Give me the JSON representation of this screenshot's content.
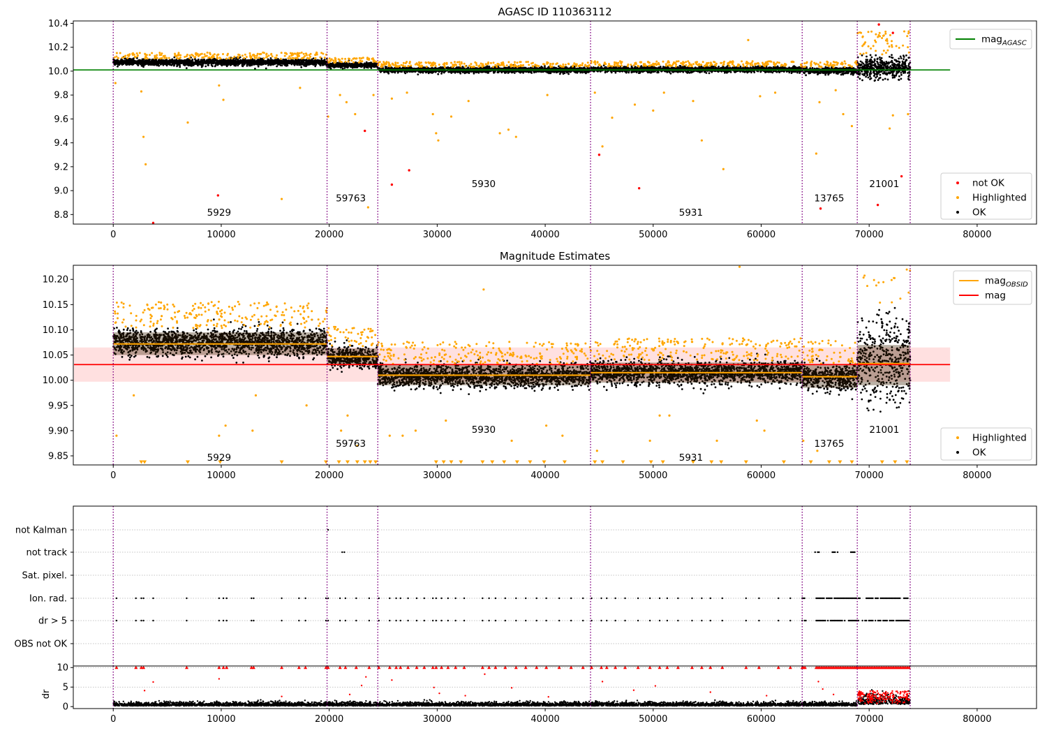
{
  "chart_data": [
    {
      "id": "top",
      "type": "scatter",
      "title": "AGASC ID 110363112",
      "xlabel": "",
      "ylabel": "",
      "xlim": [
        -3700,
        85500
      ],
      "ylim": [
        8.72,
        10.42
      ],
      "xticks": [
        0,
        10000,
        20000,
        30000,
        40000,
        50000,
        60000,
        70000,
        80000
      ],
      "yticks": [
        8.8,
        9.0,
        9.2,
        9.4,
        9.6,
        9.8,
        10.0,
        10.2,
        10.4
      ],
      "ytick_labels": [
        "8.8",
        "9.0",
        "9.2",
        "9.4",
        "9.6",
        "9.8",
        "10.0",
        "10.2",
        "10.4"
      ],
      "observation_boundaries": [
        0,
        19800,
        24500,
        44200,
        63800,
        68900,
        73800
      ],
      "observation_labels": [
        {
          "text": "5929",
          "x": 9800,
          "y": 8.79
        },
        {
          "text": "59763",
          "x": 22000,
          "y": 8.91
        },
        {
          "text": "5930",
          "x": 34300,
          "y": 9.03
        },
        {
          "text": "5931",
          "x": 53500,
          "y": 8.79
        },
        {
          "text": "13765",
          "x": 66300,
          "y": 8.91
        },
        {
          "text": "21001",
          "x": 71400,
          "y": 9.03
        }
      ],
      "reference_line": {
        "name": "mag_AGASC",
        "y": 10.01,
        "x": [
          0,
          77500
        ],
        "color": "#008000"
      },
      "obs_bands": [
        {
          "x0": 0,
          "x1": 19800,
          "center": 10.075,
          "spread": 0.026
        },
        {
          "x0": 19800,
          "x1": 24500,
          "center": 10.05,
          "spread": 0.02
        },
        {
          "x0": 24500,
          "x1": 44200,
          "center": 10.01,
          "spread": 0.022
        },
        {
          "x0": 44200,
          "x1": 63800,
          "center": 10.015,
          "spread": 0.022
        },
        {
          "x0": 63800,
          "x1": 68900,
          "center": 10.005,
          "spread": 0.025
        },
        {
          "x0": 68900,
          "x1": 73800,
          "center": 10.03,
          "spread": 0.07
        }
      ],
      "highlighted_outliers": [
        [
          200,
          9.9
        ],
        [
          2600,
          9.83
        ],
        [
          2800,
          9.45
        ],
        [
          3000,
          9.22
        ],
        [
          6900,
          9.57
        ],
        [
          9800,
          9.88
        ],
        [
          10200,
          9.76
        ],
        [
          15600,
          8.93
        ],
        [
          17300,
          9.86
        ],
        [
          19900,
          9.62
        ],
        [
          21000,
          9.8
        ],
        [
          21600,
          9.74
        ],
        [
          22400,
          9.64
        ],
        [
          23600,
          8.86
        ],
        [
          24100,
          9.8
        ],
        [
          25800,
          9.77
        ],
        [
          27200,
          9.82
        ],
        [
          29600,
          9.64
        ],
        [
          29900,
          9.48
        ],
        [
          30100,
          9.42
        ],
        [
          31300,
          9.62
        ],
        [
          32900,
          9.75
        ],
        [
          35800,
          9.48
        ],
        [
          36600,
          9.51
        ],
        [
          37300,
          9.45
        ],
        [
          40200,
          9.8
        ],
        [
          44600,
          9.82
        ],
        [
          45300,
          9.37
        ],
        [
          46200,
          9.61
        ],
        [
          48300,
          9.72
        ],
        [
          50000,
          9.67
        ],
        [
          51000,
          9.82
        ],
        [
          53700,
          9.75
        ],
        [
          54500,
          9.42
        ],
        [
          56500,
          9.18
        ],
        [
          58800,
          10.26
        ],
        [
          59900,
          9.79
        ],
        [
          61300,
          9.82
        ],
        [
          65100,
          9.31
        ],
        [
          65400,
          9.74
        ],
        [
          66900,
          9.84
        ],
        [
          67600,
          9.64
        ],
        [
          68400,
          9.54
        ],
        [
          71900,
          9.52
        ],
        [
          72200,
          9.63
        ],
        [
          73600,
          9.64
        ]
      ],
      "not_ok_points": [
        [
          3700,
          8.73
        ],
        [
          9700,
          8.96
        ],
        [
          23300,
          9.5
        ],
        [
          25800,
          9.05
        ],
        [
          27400,
          9.17
        ],
        [
          45000,
          9.3
        ],
        [
          48700,
          9.02
        ],
        [
          65500,
          8.85
        ],
        [
          70800,
          8.88
        ],
        [
          70900,
          10.39
        ],
        [
          72200,
          10.32
        ],
        [
          73000,
          9.12
        ]
      ],
      "legend_top": {
        "entries": [
          {
            "name": "mag",
            "sub": "AGASC",
            "color": "#008000"
          }
        ]
      },
      "legend_bottom": {
        "entries": [
          {
            "name": "not OK",
            "color": "#ff0000"
          },
          {
            "name": "Highlighted",
            "color": "#ffa500"
          },
          {
            "name": "OK",
            "color": "#000000"
          }
        ]
      }
    },
    {
      "id": "middle",
      "type": "scatter",
      "title": "Magnitude Estimates",
      "xlabel": "",
      "ylabel": "",
      "xlim": [
        -3700,
        85500
      ],
      "ylim": [
        9.832,
        10.228
      ],
      "xticks": [
        0,
        10000,
        20000,
        30000,
        40000,
        50000,
        60000,
        70000,
        80000
      ],
      "yticks": [
        9.85,
        9.9,
        9.95,
        10.0,
        10.05,
        10.1,
        10.15,
        10.2
      ],
      "ytick_labels": [
        "9.85",
        "9.90",
        "9.95",
        "10.00",
        "10.05",
        "10.10",
        "10.15",
        "10.20"
      ],
      "observation_boundaries": [
        0,
        19800,
        24500,
        44200,
        63800,
        68900,
        73800
      ],
      "observation_labels": [
        {
          "text": "5929",
          "x": 9800,
          "y": 9.84
        },
        {
          "text": "59763",
          "x": 22000,
          "y": 9.868
        },
        {
          "text": "5930",
          "x": 34300,
          "y": 9.896
        },
        {
          "text": "5931",
          "x": 53500,
          "y": 9.84
        },
        {
          "text": "13765",
          "x": 66300,
          "y": 9.868
        },
        {
          "text": "21001",
          "x": 71400,
          "y": 9.896
        }
      ],
      "mag_line": {
        "name": "mag",
        "y": 10.031,
        "band": [
          9.997,
          10.065
        ],
        "x": [
          -3700,
          77500
        ],
        "color": "#ff0000"
      },
      "mag_obsid": [
        {
          "x0": 0,
          "x1": 19800,
          "y": 10.072,
          "band": [
            10.05,
            10.095
          ]
        },
        {
          "x0": 19800,
          "x1": 24500,
          "y": 10.047,
          "band": [
            10.03,
            10.063
          ]
        },
        {
          "x0": 24500,
          "x1": 44200,
          "y": 10.01,
          "band": [
            9.99,
            10.03
          ]
        },
        {
          "x0": 44200,
          "x1": 63800,
          "y": 10.015,
          "band": [
            9.995,
            10.035
          ]
        },
        {
          "x0": 63800,
          "x1": 68900,
          "y": 10.007,
          "band": [
            9.985,
            10.03
          ]
        },
        {
          "x0": 68900,
          "x1": 73800,
          "y": 10.033,
          "band": [
            9.99,
            10.07
          ]
        }
      ],
      "obs_bands": [
        {
          "x0": 0,
          "x1": 19800,
          "center": 10.075,
          "spread": 0.026
        },
        {
          "x0": 19800,
          "x1": 24500,
          "center": 10.045,
          "spread": 0.02
        },
        {
          "x0": 24500,
          "x1": 44200,
          "center": 10.008,
          "spread": 0.022
        },
        {
          "x0": 44200,
          "x1": 63800,
          "center": 10.015,
          "spread": 0.022
        },
        {
          "x0": 63800,
          "x1": 68900,
          "center": 10.005,
          "spread": 0.025
        },
        {
          "x0": 68900,
          "x1": 73800,
          "center": 10.04,
          "spread": 0.07
        }
      ],
      "highlighted_outliers": [
        [
          300,
          9.89
        ],
        [
          1900,
          9.97
        ],
        [
          9800,
          9.89
        ],
        [
          10400,
          9.91
        ],
        [
          12900,
          9.9
        ],
        [
          13200,
          9.97
        ],
        [
          17900,
          9.95
        ],
        [
          21100,
          9.9
        ],
        [
          21700,
          9.93
        ],
        [
          22600,
          9.87
        ],
        [
          25600,
          9.89
        ],
        [
          26800,
          9.89
        ],
        [
          28000,
          9.9
        ],
        [
          30800,
          9.92
        ],
        [
          34300,
          10.18
        ],
        [
          36900,
          9.88
        ],
        [
          40100,
          9.91
        ],
        [
          41600,
          9.89
        ],
        [
          44800,
          9.86
        ],
        [
          49700,
          9.88
        ],
        [
          50600,
          9.93
        ],
        [
          51500,
          9.93
        ],
        [
          55900,
          9.88
        ],
        [
          58000,
          10.225
        ],
        [
          59600,
          9.92
        ],
        [
          60300,
          9.9
        ],
        [
          63900,
          9.88
        ],
        [
          65200,
          9.86
        ]
      ],
      "clipped_markers_x": [
        2600,
        2900,
        6900,
        9900,
        15600,
        19700,
        20900,
        21700,
        22600,
        23300,
        23800,
        24300,
        29900,
        30600,
        31300,
        32200,
        34200,
        35100,
        36200,
        37400,
        38600,
        39900,
        41800,
        44600,
        45300,
        47200,
        49800,
        50900,
        53700,
        55400,
        56300,
        58600,
        62100,
        64600,
        66300,
        67300,
        68400,
        71200,
        72400,
        73500
      ],
      "legend_top": {
        "entries": [
          {
            "name": "mag",
            "sub": "OBSID",
            "color": "#ffa500"
          },
          {
            "name": "mag",
            "sub": "",
            "color": "#ff0000"
          }
        ]
      },
      "legend_bottom": {
        "entries": [
          {
            "name": "Highlighted",
            "color": "#ffa500"
          },
          {
            "name": "OK",
            "color": "#000000"
          }
        ]
      }
    },
    {
      "id": "flags",
      "type": "scatter",
      "xlabel": "",
      "ylabel": "",
      "xlim": [
        -3700,
        85500
      ],
      "categories": [
        "not Kalman",
        "not track",
        "Sat. pixel.",
        "Ion. rad.",
        "dr > 5",
        "OBS not OK"
      ],
      "observation_boundaries": [
        0,
        19800,
        24500,
        44200,
        63800,
        68900,
        73800
      ],
      "flag_points": {
        "not Kalman": [
          19900
        ],
        "not track": [
          21200,
          21400
        ],
        "Sat. pixel.": [],
        "Ion. rad.": [
          300,
          2100,
          2600,
          2800,
          3700,
          6800,
          9800,
          10200,
          10500,
          12800,
          13000,
          15600,
          17200,
          17800,
          19700,
          19900,
          21000,
          21500,
          22500,
          23700,
          24600,
          25600,
          26200,
          26600,
          27300,
          28100,
          28800,
          29600,
          29900,
          30400,
          31000,
          31700,
          32500,
          34200,
          34800,
          35400,
          36300,
          37300,
          38200,
          39200,
          40100,
          41300,
          42400,
          43500,
          44300,
          45200,
          45700,
          46500,
          47400,
          48600,
          49700,
          50600,
          51300,
          52300,
          53600,
          54500,
          55300,
          56400,
          58600,
          59800,
          61600,
          62700,
          63800
        ],
        "dr > 5": [
          300,
          2100,
          2600,
          2800,
          3700,
          6800,
          9800,
          10200,
          10500,
          12800,
          13000,
          15600,
          17200,
          17800,
          19700,
          19900,
          21000,
          21500,
          22500,
          23700,
          24600,
          25600,
          26200,
          26600,
          27300,
          28100,
          28800,
          29600,
          29900,
          30400,
          31000,
          31700,
          32500,
          34200,
          34800,
          35400,
          36300,
          37300,
          38200,
          39200,
          40100,
          41300,
          42400,
          43500,
          44300,
          45200,
          45700,
          46500,
          47400,
          48600,
          49700,
          50600,
          51300,
          52300,
          53600,
          54500,
          55300,
          56400,
          58600,
          59800,
          61600,
          62700,
          63800
        ],
        "OBS not OK": []
      },
      "dense_ranges": {
        "not track": [
          [
            65000,
            65400
          ],
          [
            66600,
            67100
          ],
          [
            68300,
            68700
          ]
        ],
        "Ion. rad.": [
          [
            63900,
            64200
          ],
          [
            65100,
            68900
          ],
          [
            68900,
            73800
          ]
        ],
        "dr > 5": [
          [
            63900,
            64200
          ],
          [
            65100,
            68900
          ],
          [
            68900,
            73800
          ]
        ]
      }
    },
    {
      "id": "dr",
      "type": "scatter",
      "xlabel": "",
      "ylabel": "dr",
      "xlim": [
        -3700,
        85500
      ],
      "ylim": [
        -0.5,
        10.4
      ],
      "xticks": [
        0,
        10000,
        20000,
        30000,
        40000,
        50000,
        60000,
        70000,
        80000
      ],
      "yticks": [
        0,
        5,
        10
      ],
      "ytick_labels": [
        "0",
        "5",
        "10"
      ],
      "observation_boundaries": [
        0,
        19800,
        24500,
        44200,
        63800,
        68900,
        73800
      ],
      "capped_x": [
        300,
        2100,
        2600,
        2800,
        6800,
        9800,
        10200,
        10500,
        12800,
        13000,
        15600,
        17200,
        17800,
        19700,
        19900,
        21000,
        21500,
        22500,
        23700,
        24600,
        25600,
        26200,
        26600,
        27300,
        28100,
        28800,
        29600,
        29900,
        30400,
        31000,
        31700,
        32500,
        34200,
        34800,
        35400,
        36300,
        37300,
        38200,
        39200,
        40100,
        41300,
        42400,
        43500,
        44300,
        45200,
        45700,
        46500,
        47400,
        48600,
        49700,
        50600,
        51300,
        52300,
        53600,
        54500,
        55300,
        56400,
        58600,
        59800,
        61600,
        62700,
        63800
      ],
      "mid_points": [
        [
          2900,
          4.1
        ],
        [
          3700,
          6.3
        ],
        [
          9800,
          7.1
        ],
        [
          15600,
          2.6
        ],
        [
          21900,
          3.1
        ],
        [
          23000,
          5.4
        ],
        [
          23400,
          7.6
        ],
        [
          25800,
          6.8
        ],
        [
          29700,
          4.9
        ],
        [
          30200,
          3.4
        ],
        [
          32600,
          2.8
        ],
        [
          34400,
          8.3
        ],
        [
          36900,
          4.8
        ],
        [
          40300,
          2.5
        ],
        [
          45300,
          6.4
        ],
        [
          48200,
          4.2
        ],
        [
          50200,
          5.3
        ],
        [
          55300,
          3.7
        ],
        [
          60500,
          2.8
        ],
        [
          65300,
          6.4
        ],
        [
          65700,
          4.5
        ],
        [
          66700,
          3.1
        ]
      ]
    }
  ]
}
